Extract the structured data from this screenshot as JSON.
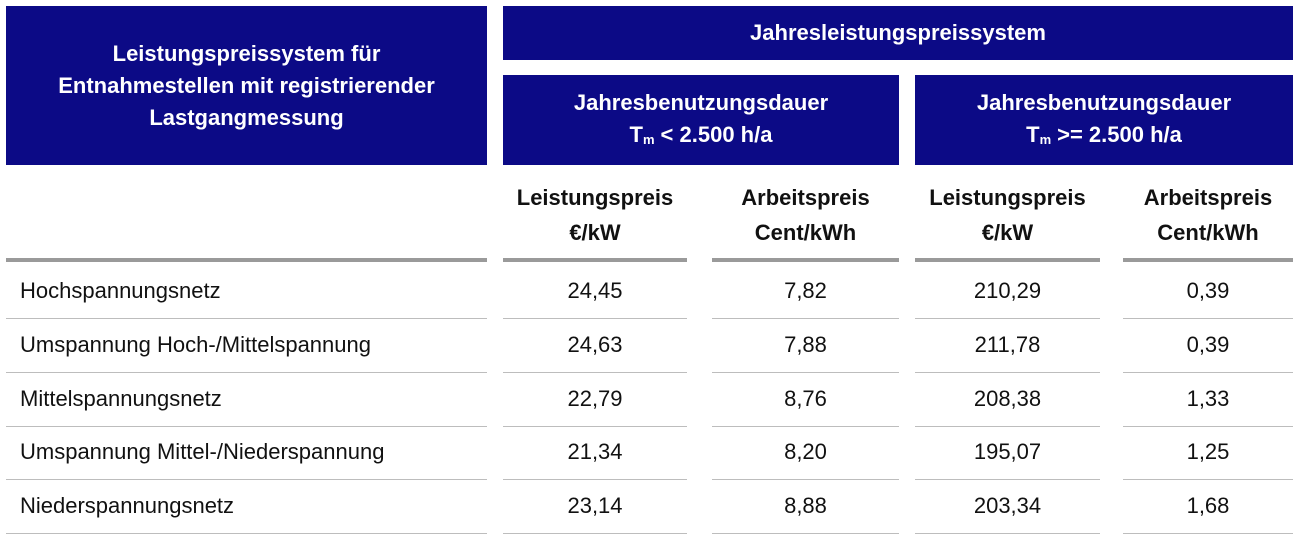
{
  "header": {
    "left_title": [
      "Leistungspreissystem für",
      "Entnahmestellen mit registrierender",
      "Lastgangmessung"
    ],
    "group_title": "Jahresleistungspreissystem",
    "subgroups": [
      {
        "line1": "Jahresbenutzungsdauer",
        "symbol": "T",
        "subscript": "m",
        "condition": "< 2.500 h/a"
      },
      {
        "line1": "Jahresbenutzungsdauer",
        "symbol": "T",
        "subscript": "m",
        "condition": ">= 2.500 h/a"
      }
    ],
    "columns": [
      [
        "Leistungspreis",
        "€/kW"
      ],
      [
        "Arbeitspreis",
        "Cent/kWh"
      ],
      [
        "Leistungspreis",
        "€/kW"
      ],
      [
        "Arbeitspreis",
        "Cent/kWh"
      ]
    ]
  },
  "table": {
    "rows": [
      [
        "Hochspannungsnetz",
        "24,45",
        "7,82",
        "210,29",
        "0,39"
      ],
      [
        "Umspannung Hoch-/Mittelspannung",
        "24,63",
        "7,88",
        "211,78",
        "0,39"
      ],
      [
        "Mittelspannungsnetz",
        "22,79",
        "8,76",
        "208,38",
        "1,33"
      ],
      [
        "Umspannung Mittel-/Niederspannung",
        "21,34",
        "8,20",
        "195,07",
        "1,25"
      ],
      [
        "Niederspannungsnetz",
        "23,14",
        "8,88",
        "203,34",
        "1,68"
      ]
    ]
  }
}
